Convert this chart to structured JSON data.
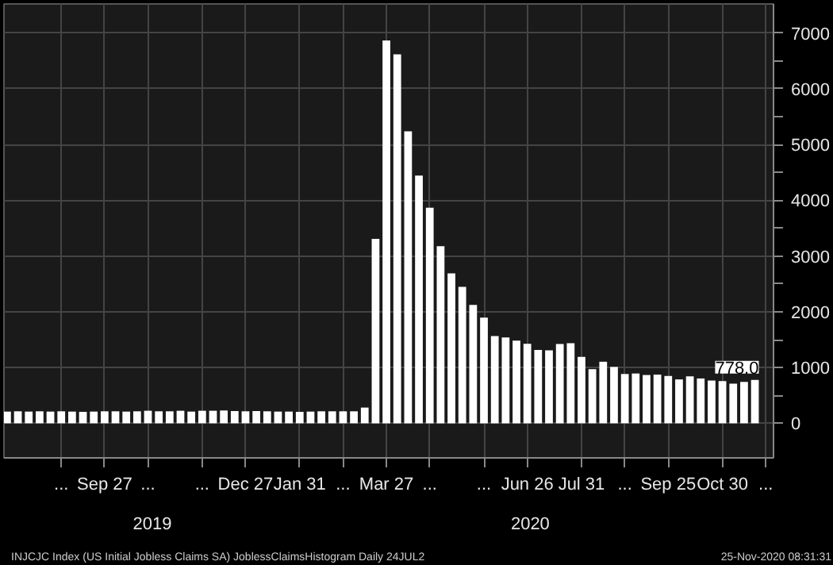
{
  "chart_data": {
    "type": "bar",
    "x": [
      "2019-07-26",
      "2019-08-02",
      "2019-08-09",
      "2019-08-16",
      "2019-08-23",
      "2019-08-30",
      "2019-09-06",
      "2019-09-13",
      "2019-09-20",
      "2019-09-27",
      "2019-10-04",
      "2019-10-11",
      "2019-10-18",
      "2019-10-25",
      "2019-11-01",
      "2019-11-08",
      "2019-11-15",
      "2019-11-22",
      "2019-11-29",
      "2019-12-06",
      "2019-12-13",
      "2019-12-20",
      "2019-12-27",
      "2020-01-03",
      "2020-01-10",
      "2020-01-17",
      "2020-01-24",
      "2020-01-31",
      "2020-02-07",
      "2020-02-14",
      "2020-02-21",
      "2020-02-28",
      "2020-03-06",
      "2020-03-13",
      "2020-03-20",
      "2020-03-27",
      "2020-04-03",
      "2020-04-10",
      "2020-04-17",
      "2020-04-24",
      "2020-05-01",
      "2020-05-08",
      "2020-05-15",
      "2020-05-22",
      "2020-05-29",
      "2020-06-05",
      "2020-06-12",
      "2020-06-19",
      "2020-06-26",
      "2020-07-03",
      "2020-07-10",
      "2020-07-17",
      "2020-07-24",
      "2020-07-31",
      "2020-08-07",
      "2020-08-14",
      "2020-08-21",
      "2020-08-28",
      "2020-09-04",
      "2020-09-11",
      "2020-09-18",
      "2020-09-25",
      "2020-10-02",
      "2020-10-09",
      "2020-10-16",
      "2020-10-23",
      "2020-10-30",
      "2020-11-06",
      "2020-11-13",
      "2020-11-20"
    ],
    "series": [
      {
        "color": "#ffffff",
        "values": [
          210,
          215,
          210,
          215,
          210,
          215,
          210,
          205,
          210,
          215,
          215,
          210,
          215,
          225,
          215,
          215,
          225,
          210,
          225,
          225,
          230,
          220,
          215,
          220,
          215,
          210,
          210,
          205,
          210,
          215,
          215,
          215,
          215,
          282,
          3307,
          6867,
          6615,
          5237,
          4442,
          3867,
          3176,
          2687,
          2446,
          2123,
          1897,
          1566,
          1540,
          1482,
          1427,
          1314,
          1307,
          1422,
          1435,
          1191,
          971,
          1104,
          1011,
          884,
          893,
          866,
          873,
          849,
          787,
          842,
          804,
          767,
          757,
          711,
          742,
          778
        ],
        "value_labels": [
          null,
          null,
          null,
          null,
          null,
          null,
          null,
          null,
          null,
          null,
          null,
          null,
          null,
          null,
          null,
          null,
          null,
          null,
          null,
          null,
          null,
          null,
          null,
          null,
          null,
          null,
          null,
          null,
          null,
          null,
          null,
          null,
          null,
          null,
          null,
          null,
          null,
          null,
          null,
          null,
          null,
          null,
          null,
          null,
          null,
          null,
          null,
          null,
          null,
          null,
          null,
          null,
          null,
          null,
          null,
          null,
          null,
          null,
          null,
          null,
          null,
          null,
          null,
          null,
          null,
          null,
          null,
          null,
          null,
          "778.0"
        ]
      }
    ],
    "xlim": [
      "2019-07-24",
      "2020-12-02"
    ],
    "xticks": [
      {
        "value": "2019-08-30",
        "label": "..."
      },
      {
        "value": "2019-09-27",
        "label": "Sep 27"
      },
      {
        "value": "2019-10-25",
        "label": "..."
      },
      {
        "value": "2019-11-29",
        "label": "..."
      },
      {
        "value": "2019-12-27",
        "label": "Dec 27"
      },
      {
        "value": "2020-01-31",
        "label": "Jan 31"
      },
      {
        "value": "2020-02-28",
        "label": "..."
      },
      {
        "value": "2020-03-27",
        "label": "Mar 27"
      },
      {
        "value": "2020-04-24",
        "label": "..."
      },
      {
        "value": "2020-05-29",
        "label": "..."
      },
      {
        "value": "2020-06-26",
        "label": "Jun 26"
      },
      {
        "value": "2020-07-31",
        "label": "Jul 31"
      },
      {
        "value": "2020-08-28",
        "label": "..."
      },
      {
        "value": "2020-09-25",
        "label": "Sep 25"
      },
      {
        "value": "2020-10-30",
        "label": "Oct 30"
      },
      {
        "value": "2020-11-27",
        "label": "..."
      }
    ],
    "ylim": [
      -620,
      7520
    ],
    "yticks": [
      0,
      {
        "value": 500,
        "label": null
      },
      1000,
      {
        "value": 1500,
        "label": null
      },
      2000,
      {
        "value": 2500,
        "label": null
      },
      3000,
      {
        "value": 3500,
        "label": null
      },
      4000,
      {
        "value": 4500,
        "label": null
      },
      5000,
      {
        "value": 5500,
        "label": null
      },
      6000,
      {
        "value": 6500,
        "label": null
      },
      7000
    ],
    "grid": true,
    "annotations": [
      "2019",
      "2020",
      "INJCJC Index (US Initial Jobless Claims SA) JoblessClaimsHistogram  Daily 24JUL2",
      "25-Nov-2020 08:31:31"
    ]
  }
}
